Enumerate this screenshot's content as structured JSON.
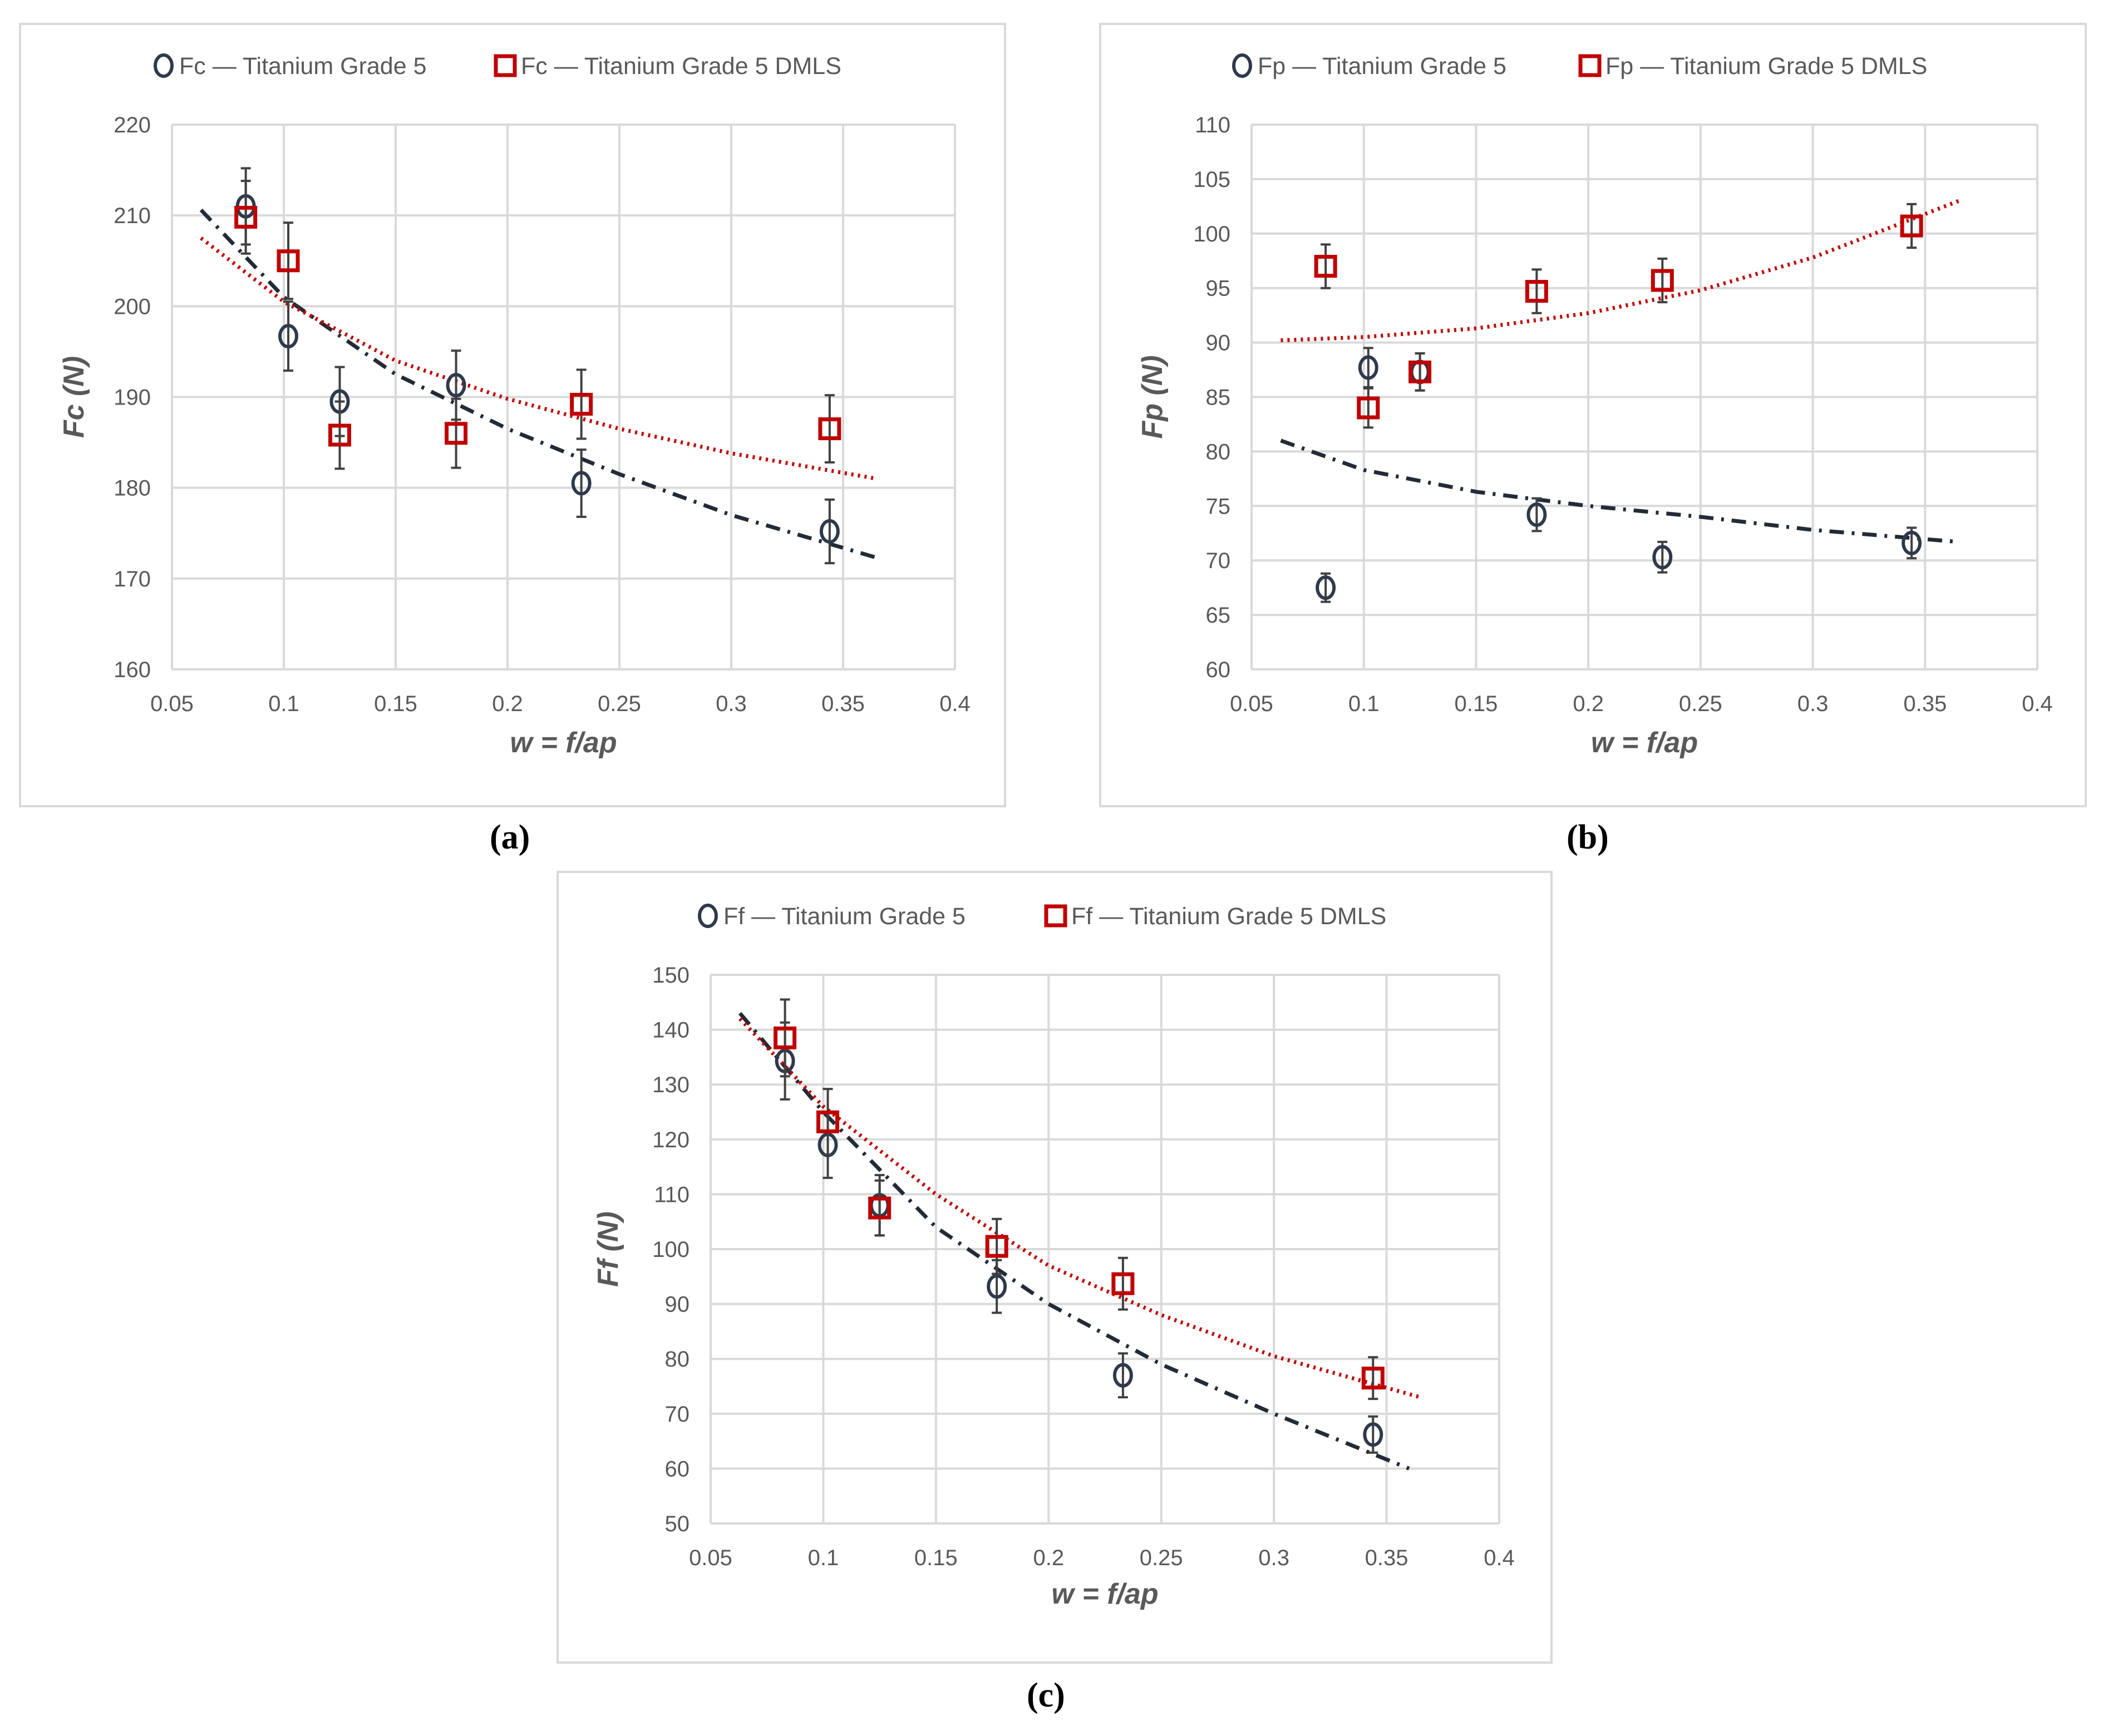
{
  "panel_labels": [
    "(a)",
    "(b)",
    "(c)"
  ],
  "colors": {
    "tg5": "#2e3a4b",
    "dmls": "#c00000",
    "grid": "#d9d9d9",
    "tick": "#595959",
    "errbar": "#404040"
  },
  "chart_data": [
    {
      "type": "scatter",
      "id": "a",
      "xlabel": "w = f/ap",
      "ylabel": "Fc (N)",
      "xlim": [
        0.05,
        0.4
      ],
      "xticks": [
        "0.05",
        "0.1",
        "0.15",
        "0.2",
        "0.25",
        "0.3",
        "0.35",
        "0.4"
      ],
      "ylim": [
        160,
        220
      ],
      "yticks": [
        "160",
        "170",
        "180",
        "190",
        "200",
        "210",
        "220"
      ],
      "grid": true,
      "legend": "top",
      "x": [
        0.083,
        0.102,
        0.125,
        0.177,
        0.233,
        0.344
      ],
      "series": [
        {
          "name": "Fc — Titanium Grade 5",
          "marker": "circle",
          "values": [
            211,
            196.7,
            189.5,
            191.3,
            180.5,
            175.2
          ],
          "errors": [
            4.2,
            3.8,
            3.8,
            3.8,
            3.7,
            3.5
          ],
          "trend": {
            "style": "dash-dot",
            "x": [
              0.063,
              0.1,
              0.15,
              0.2,
              0.25,
              0.3,
              0.365
            ],
            "y": [
              210.6,
              201,
              192.5,
              186.5,
              181.5,
              177,
              172.3
            ]
          }
        },
        {
          "name": "Fc — Titanium Grade 5 DMLS",
          "marker": "square",
          "values": [
            209.8,
            205,
            185.8,
            186,
            189.2,
            186.5
          ],
          "errors": [
            4,
            4.2,
            3.7,
            3.8,
            3.8,
            3.7
          ],
          "trend": {
            "style": "dotted",
            "x": [
              0.063,
              0.1,
              0.15,
              0.2,
              0.25,
              0.3,
              0.365
            ],
            "y": [
              207.5,
              200.5,
              194,
              189.8,
              186.5,
              183.8,
              181
            ]
          }
        }
      ]
    },
    {
      "type": "scatter",
      "id": "b",
      "xlabel": "w = f/ap",
      "ylabel": "Fp (N)",
      "xlim": [
        0.05,
        0.4
      ],
      "xticks": [
        "0.05",
        "0.1",
        "0.15",
        "0.2",
        "0.25",
        "0.3",
        "0.35",
        "0.4"
      ],
      "ylim": [
        60,
        110
      ],
      "yticks": [
        "60",
        "65",
        "70",
        "75",
        "80",
        "85",
        "90",
        "95",
        "100",
        "105",
        "110"
      ],
      "grid": true,
      "legend": "top",
      "x": [
        0.083,
        0.102,
        0.125,
        0.177,
        0.233,
        0.344
      ],
      "series": [
        {
          "name": "Fp — Titanium Grade 5",
          "marker": "circle",
          "values": [
            67.5,
            87.7,
            87.3,
            74.2,
            70.3,
            71.6
          ],
          "errors": [
            1.3,
            1.8,
            1.7,
            1.5,
            1.4,
            1.4
          ],
          "trend": {
            "style": "dash-dot",
            "x": [
              0.063,
              0.1,
              0.15,
              0.2,
              0.25,
              0.3,
              0.365
            ],
            "y": [
              81,
              78.3,
              76.3,
              75,
              74,
              72.8,
              71.7
            ]
          }
        },
        {
          "name": "Fp — Titanium Grade 5 DMLS",
          "marker": "square",
          "values": [
            97,
            84,
            87.3,
            94.7,
            95.7,
            100.7
          ],
          "errors": [
            2,
            1.8,
            1.7,
            2,
            2,
            2
          ],
          "trend": {
            "style": "dotted",
            "x": [
              0.063,
              0.1,
              0.15,
              0.2,
              0.25,
              0.3,
              0.365
            ],
            "y": [
              90.2,
              90.5,
              91.3,
              92.7,
              94.8,
              97.8,
              103
            ]
          }
        }
      ]
    },
    {
      "type": "scatter",
      "id": "c",
      "xlabel": "w = f/ap",
      "ylabel": "Ff (N)",
      "xlim": [
        0.05,
        0.4
      ],
      "xticks": [
        "0.05",
        "0.1",
        "0.15",
        "0.2",
        "0.25",
        "0.3",
        "0.35",
        "0.4"
      ],
      "ylim": [
        50,
        150
      ],
      "yticks": [
        "50",
        "60",
        "70",
        "80",
        "90",
        "100",
        "110",
        "120",
        "130",
        "140",
        "150"
      ],
      "grid": true,
      "legend": "top",
      "x": [
        0.083,
        0.102,
        0.125,
        0.177,
        0.233,
        0.344
      ],
      "series": [
        {
          "name": "Ff — Titanium Grade 5",
          "marker": "circle",
          "values": [
            134.3,
            119,
            108,
            93.2,
            77,
            66.2
          ],
          "errors": [
            7,
            6,
            5.5,
            4.8,
            4,
            3.3
          ],
          "trend": {
            "style": "dash-dot",
            "x": [
              0.063,
              0.1,
              0.15,
              0.2,
              0.25,
              0.3,
              0.36
            ],
            "y": [
              143,
              125,
              104,
              90,
              79,
              70,
              60
            ]
          }
        },
        {
          "name": "Ff — Titanium Grade 5 DMLS",
          "marker": "square",
          "values": [
            138.5,
            123.2,
            107.5,
            100.5,
            93.7,
            76.5
          ],
          "errors": [
            7,
            6,
            5,
            5,
            4.7,
            3.8
          ],
          "trend": {
            "style": "dotted",
            "x": [
              0.063,
              0.1,
              0.15,
              0.2,
              0.25,
              0.3,
              0.365
            ],
            "y": [
              142,
              126,
              110,
              97,
              88,
              80.5,
              73
            ]
          }
        }
      ]
    }
  ]
}
